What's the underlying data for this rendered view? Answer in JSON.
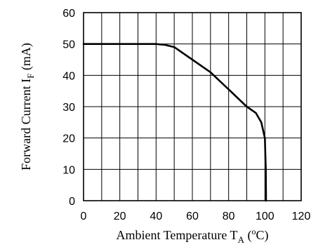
{
  "chart_data": {
    "type": "line",
    "xlabel": {
      "main": "Ambient Temperature T",
      "sub": "A",
      "unit_open": " (",
      "unit_sup": "o",
      "unit_close": "C)"
    },
    "ylabel": {
      "main": "Forward Current I",
      "sub": "F",
      "unit": " (mA)"
    },
    "xlim": [
      0,
      120
    ],
    "ylim": [
      0,
      60
    ],
    "xticks": [
      0,
      20,
      40,
      60,
      80,
      100,
      120
    ],
    "yticks": [
      0,
      10,
      20,
      30,
      40,
      50,
      60
    ],
    "grid": true,
    "x_minor_step": 10,
    "series": [
      {
        "x": [
          0,
          35,
          40,
          45,
          50,
          55,
          60,
          70,
          80,
          90,
          95,
          98,
          100,
          100.5,
          100.6,
          100.6
        ],
        "y": [
          50,
          50,
          50,
          49.7,
          49,
          47,
          45,
          41,
          35.5,
          30,
          28,
          25,
          20,
          10,
          2,
          0
        ]
      }
    ]
  }
}
